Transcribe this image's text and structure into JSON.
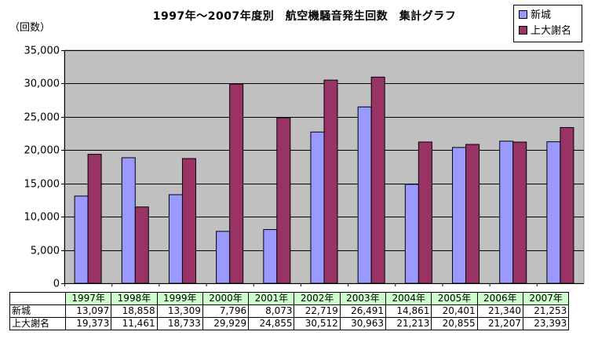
{
  "chart_data": {
    "type": "bar",
    "title": "1997年～2007年度別　航空機騒音発生回数　集計グラフ",
    "ylabel": "（回数）",
    "ylim": [
      0,
      35000
    ],
    "yticks": [
      "0",
      "5,000",
      "10,000",
      "15,000",
      "20,000",
      "25,000",
      "30,000",
      "35,000"
    ],
    "ytick_values": [
      0,
      5000,
      10000,
      15000,
      20000,
      25000,
      30000,
      35000
    ],
    "grid": true,
    "legend_position": "top-right",
    "plot_background": "#c0c0c0",
    "categories": [
      "1997年",
      "1998年",
      "1999年",
      "2000年",
      "2001年",
      "2002年",
      "2003年",
      "2004年",
      "2005年",
      "2006年",
      "2007年"
    ],
    "series": [
      {
        "name": "新城",
        "color": "#9999ff",
        "values": [
          13097,
          18858,
          13309,
          7796,
          8073,
          22719,
          26491,
          14861,
          20401,
          21340,
          21253
        ],
        "labels": [
          "13,097",
          "18,858",
          "13,309",
          "7,796",
          "8,073",
          "22,719",
          "26,491",
          "14,861",
          "20,401",
          "21,340",
          "21,253"
        ]
      },
      {
        "name": "上大謝名",
        "color": "#993366",
        "values": [
          19373,
          11461,
          18733,
          29929,
          24855,
          30512,
          30963,
          21213,
          20855,
          21207,
          23393
        ],
        "labels": [
          "19,373",
          "11,461",
          "18,733",
          "29,929",
          "24,855",
          "30,512",
          "30,963",
          "21,213",
          "20,855",
          "21,207",
          "23,393"
        ]
      }
    ]
  }
}
